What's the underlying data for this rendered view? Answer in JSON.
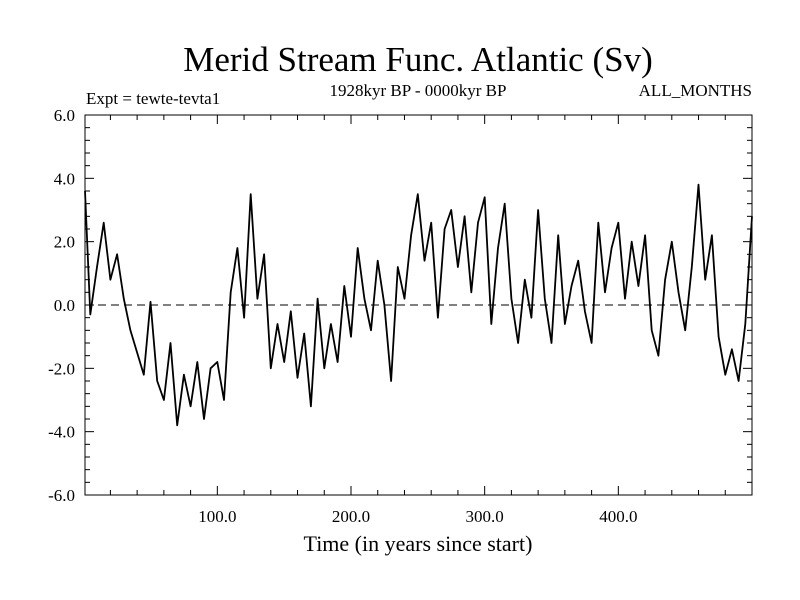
{
  "chart_data": {
    "type": "line",
    "title": "Merid Stream Func. Atlantic (Sv)",
    "subtitle": "1928kyr BP - 0000kyr BP",
    "experiment_label": "Expt = tewte-tevta1",
    "period_label": "ALL_MONTHS",
    "xlabel": "Time (in years since start)",
    "ylabel": "",
    "xlim": [
      1,
      500
    ],
    "ylim": [
      -6,
      6
    ],
    "x_ticks": [
      100,
      200,
      300,
      400
    ],
    "x_tick_labels": [
      "100.0",
      "200.0",
      "300.0",
      "400.0"
    ],
    "y_ticks": [
      -6,
      -4,
      -2,
      0,
      2,
      4,
      6
    ],
    "y_tick_labels": [
      "-6.0",
      "-4.0",
      "-2.0",
      "0.0",
      "2.0",
      "4.0",
      "6.0"
    ],
    "reference_line": {
      "y": 0,
      "style": "dashed"
    },
    "grid": false,
    "series": [
      {
        "name": "Merid Stream Func. Atlantic",
        "x": [
          1,
          5,
          10,
          15,
          20,
          25,
          30,
          35,
          40,
          45,
          50,
          55,
          60,
          65,
          70,
          75,
          80,
          85,
          90,
          95,
          100,
          105,
          110,
          115,
          120,
          125,
          130,
          135,
          140,
          145,
          150,
          155,
          160,
          165,
          170,
          175,
          180,
          185,
          190,
          195,
          200,
          205,
          210,
          215,
          220,
          225,
          230,
          235,
          240,
          245,
          250,
          255,
          260,
          265,
          270,
          275,
          280,
          285,
          290,
          295,
          300,
          305,
          310,
          315,
          320,
          325,
          330,
          335,
          340,
          345,
          350,
          355,
          360,
          365,
          370,
          375,
          380,
          385,
          390,
          395,
          400,
          405,
          410,
          415,
          420,
          425,
          430,
          435,
          440,
          445,
          450,
          455,
          460,
          465,
          470,
          475,
          480,
          485,
          490,
          495,
          500
        ],
        "values": [
          3.6,
          -0.3,
          1.2,
          2.6,
          0.8,
          1.6,
          0.2,
          -0.8,
          -1.5,
          -2.2,
          0.1,
          -2.4,
          -3.0,
          -1.2,
          -3.8,
          -2.2,
          -3.2,
          -1.8,
          -3.6,
          -2.0,
          -1.8,
          -3.0,
          0.4,
          1.8,
          -0.4,
          3.5,
          0.2,
          1.6,
          -2.0,
          -0.6,
          -1.8,
          -0.2,
          -2.3,
          -0.9,
          -3.2,
          0.2,
          -2.0,
          -0.6,
          -1.8,
          0.6,
          -1.0,
          1.8,
          0.2,
          -0.8,
          1.4,
          0.0,
          -2.4,
          1.2,
          0.2,
          2.2,
          3.5,
          1.4,
          2.6,
          -0.4,
          2.4,
          3.0,
          1.2,
          2.8,
          0.4,
          2.6,
          3.4,
          -0.6,
          1.8,
          3.2,
          0.2,
          -1.2,
          0.8,
          -0.4,
          3.0,
          0.2,
          -1.2,
          2.2,
          -0.6,
          0.6,
          1.4,
          -0.2,
          -1.2,
          2.6,
          0.4,
          1.8,
          2.6,
          0.2,
          2.0,
          0.6,
          2.2,
          -0.8,
          -1.6,
          0.8,
          2.0,
          0.4,
          -0.8,
          1.2,
          3.8,
          0.8,
          2.2,
          -1.0,
          -2.2,
          -1.4,
          -2.4,
          -0.6,
          2.8
        ]
      }
    ]
  }
}
